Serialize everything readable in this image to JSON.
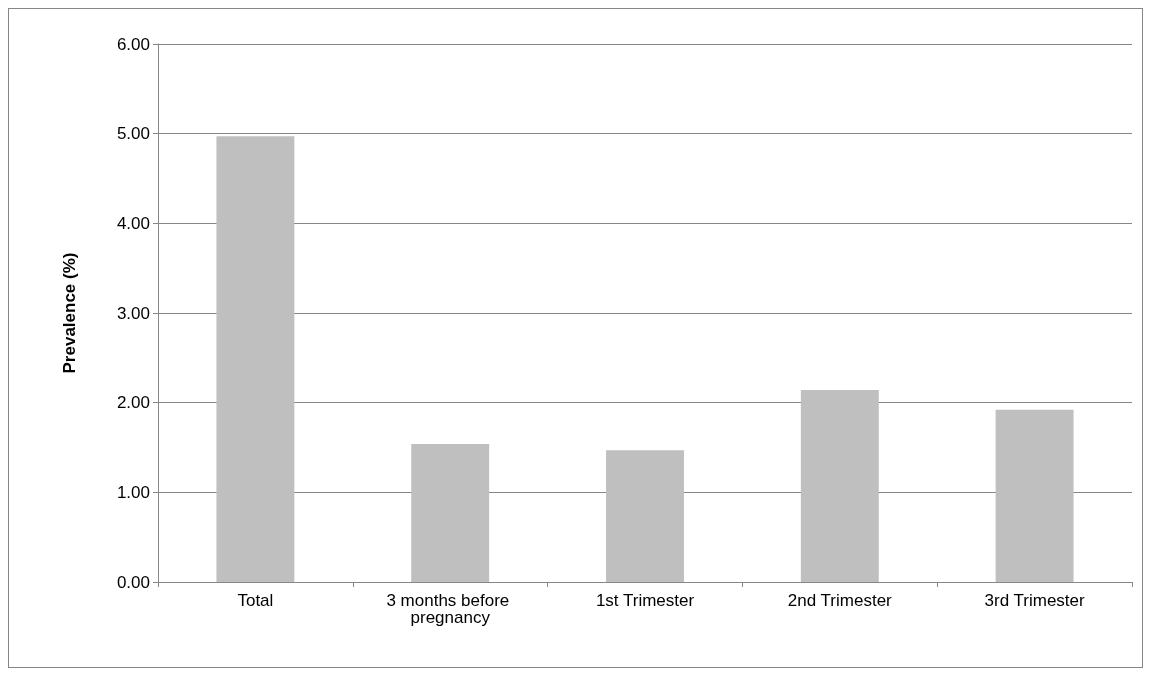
{
  "chart_data": {
    "type": "bar",
    "ylabel": "Prevalence (%)",
    "categories": [
      "Total",
      "3 months before pregnancy",
      "1st Trimester",
      "2nd Trimester",
      "3rd Trimester"
    ],
    "values": [
      4.97,
      1.54,
      1.47,
      2.14,
      1.92
    ],
    "color": "#bfbfbf",
    "ylim": [
      0,
      6
    ],
    "yticks": [
      {
        "value": 0,
        "label": "0.00"
      },
      {
        "value": 1,
        "label": "1.00"
      },
      {
        "value": 2,
        "label": "2.00"
      },
      {
        "value": 3,
        "label": "3.00"
      },
      {
        "value": 4,
        "label": "4.00"
      },
      {
        "value": 5,
        "label": "5.00"
      },
      {
        "value": 6,
        "label": "6.00"
      }
    ],
    "grid": "y"
  }
}
